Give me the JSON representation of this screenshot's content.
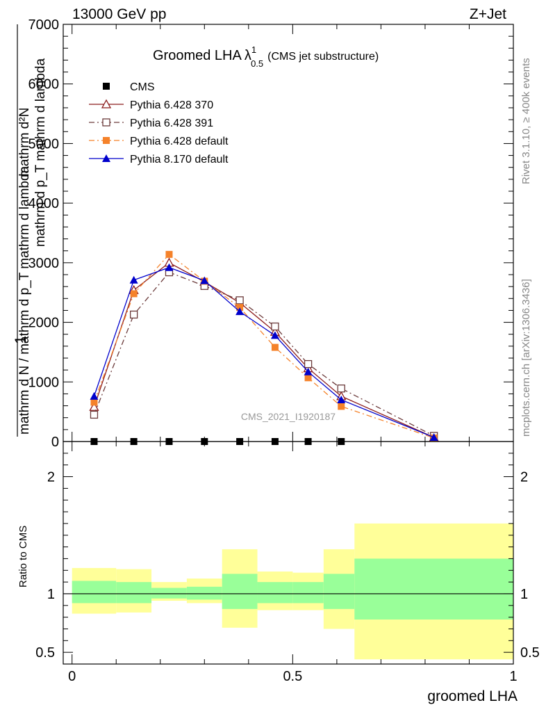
{
  "header": {
    "left": "13000 GeV pp",
    "right": "Z+Jet"
  },
  "title_main": "Groomed LHA",
  "title_symbol": "λ",
  "title_sup": "1",
  "title_sub": "0.5",
  "title_extra": "(CMS jet substructure)",
  "ylabel_numerator": "1",
  "ylabel_text": "mathrm d N / mathrm d p_T mathrm d lambda",
  "ylabel_frac_top": "mathrm d²N",
  "ylabel_frac_bottom": "mathrm d p_T mathrm d lambda",
  "side_top": "Rivet 3.1.10, ≥ 400k events",
  "side_bottom": "mcplots.cern.ch [arXiv:1306.3436]",
  "watermark": "CMS_2021_I1920187",
  "ratio_ylabel": "Ratio to CMS",
  "xlabel": "groomed LHA",
  "colors": {
    "cms": "#000000",
    "p370": "#8b1a1a",
    "p391": "#6b3a3a",
    "p6def": "#f5822a",
    "p8": "#0000cc",
    "band_inner": "#99ff99",
    "band_outer": "#ffff99"
  },
  "chart_data": [
    {
      "type": "line",
      "panel": "main",
      "xlim": [
        -0.02,
        1.0
      ],
      "ylim": [
        0,
        7000
      ],
      "yticks": [
        0,
        1000,
        2000,
        3000,
        4000,
        5000,
        6000,
        7000
      ],
      "ytick_labels": [
        "0",
        "1000",
        "2000",
        "3000",
        "4000",
        "5000",
        "6000",
        "7000"
      ],
      "legend_position": "top-left",
      "x": [
        0.05,
        0.14,
        0.22,
        0.3,
        0.38,
        0.46,
        0.535,
        0.61,
        0.82
      ],
      "series": [
        {
          "name": "CMS",
          "marker": "filled-square",
          "values": [
            0,
            0,
            0,
            0,
            0,
            0,
            0,
            0,
            null
          ]
        },
        {
          "name": "Pythia 6.428 370",
          "marker": "open-triangle",
          "style": "solid",
          "values": [
            580,
            2540,
            3000,
            2680,
            2330,
            1840,
            1230,
            760,
            70
          ]
        },
        {
          "name": "Pythia 6.428 391",
          "marker": "open-square",
          "style": "dash-dot",
          "values": [
            450,
            2130,
            2840,
            2610,
            2370,
            1930,
            1300,
            890,
            95
          ]
        },
        {
          "name": "Pythia 6.428 default",
          "marker": "filled-square",
          "style": "dash-dot",
          "values": [
            660,
            2480,
            3140,
            2690,
            2250,
            1580,
            1070,
            590,
            60
          ]
        },
        {
          "name": "Pythia 8.170 default",
          "marker": "filled-triangle",
          "style": "solid",
          "values": [
            760,
            2710,
            2920,
            2700,
            2180,
            1780,
            1170,
            700,
            70
          ]
        }
      ]
    },
    {
      "type": "area",
      "panel": "ratio",
      "xlim": [
        -0.02,
        1.0
      ],
      "ylim": [
        0.4,
        2.3
      ],
      "yticks": [
        0.5,
        1,
        2
      ],
      "ytick_labels": [
        "0.5",
        "1",
        "2"
      ],
      "xticks": [
        0,
        0.5,
        1
      ],
      "xtick_labels": [
        "0",
        "0.5",
        "1"
      ],
      "bins": [
        {
          "x0": 0.0,
          "x1": 0.1,
          "inner": [
            0.92,
            1.11
          ],
          "outer": [
            0.83,
            1.22
          ]
        },
        {
          "x0": 0.1,
          "x1": 0.18,
          "inner": [
            0.92,
            1.1
          ],
          "outer": [
            0.84,
            1.21
          ]
        },
        {
          "x0": 0.18,
          "x1": 0.26,
          "inner": [
            0.96,
            1.05
          ],
          "outer": [
            0.94,
            1.1
          ]
        },
        {
          "x0": 0.26,
          "x1": 0.34,
          "inner": [
            0.95,
            1.06
          ],
          "outer": [
            0.92,
            1.13
          ]
        },
        {
          "x0": 0.34,
          "x1": 0.42,
          "inner": [
            0.87,
            1.17
          ],
          "outer": [
            0.71,
            1.38
          ]
        },
        {
          "x0": 0.42,
          "x1": 0.5,
          "inner": [
            0.92,
            1.1
          ],
          "outer": [
            0.86,
            1.19
          ]
        },
        {
          "x0": 0.5,
          "x1": 0.57,
          "inner": [
            0.92,
            1.1
          ],
          "outer": [
            0.86,
            1.18
          ]
        },
        {
          "x0": 0.57,
          "x1": 0.64,
          "inner": [
            0.87,
            1.17
          ],
          "outer": [
            0.7,
            1.38
          ]
        },
        {
          "x0": 0.64,
          "x1": 1.0,
          "inner": [
            0.78,
            1.3
          ],
          "outer": [
            0.44,
            1.6
          ]
        }
      ]
    }
  ]
}
